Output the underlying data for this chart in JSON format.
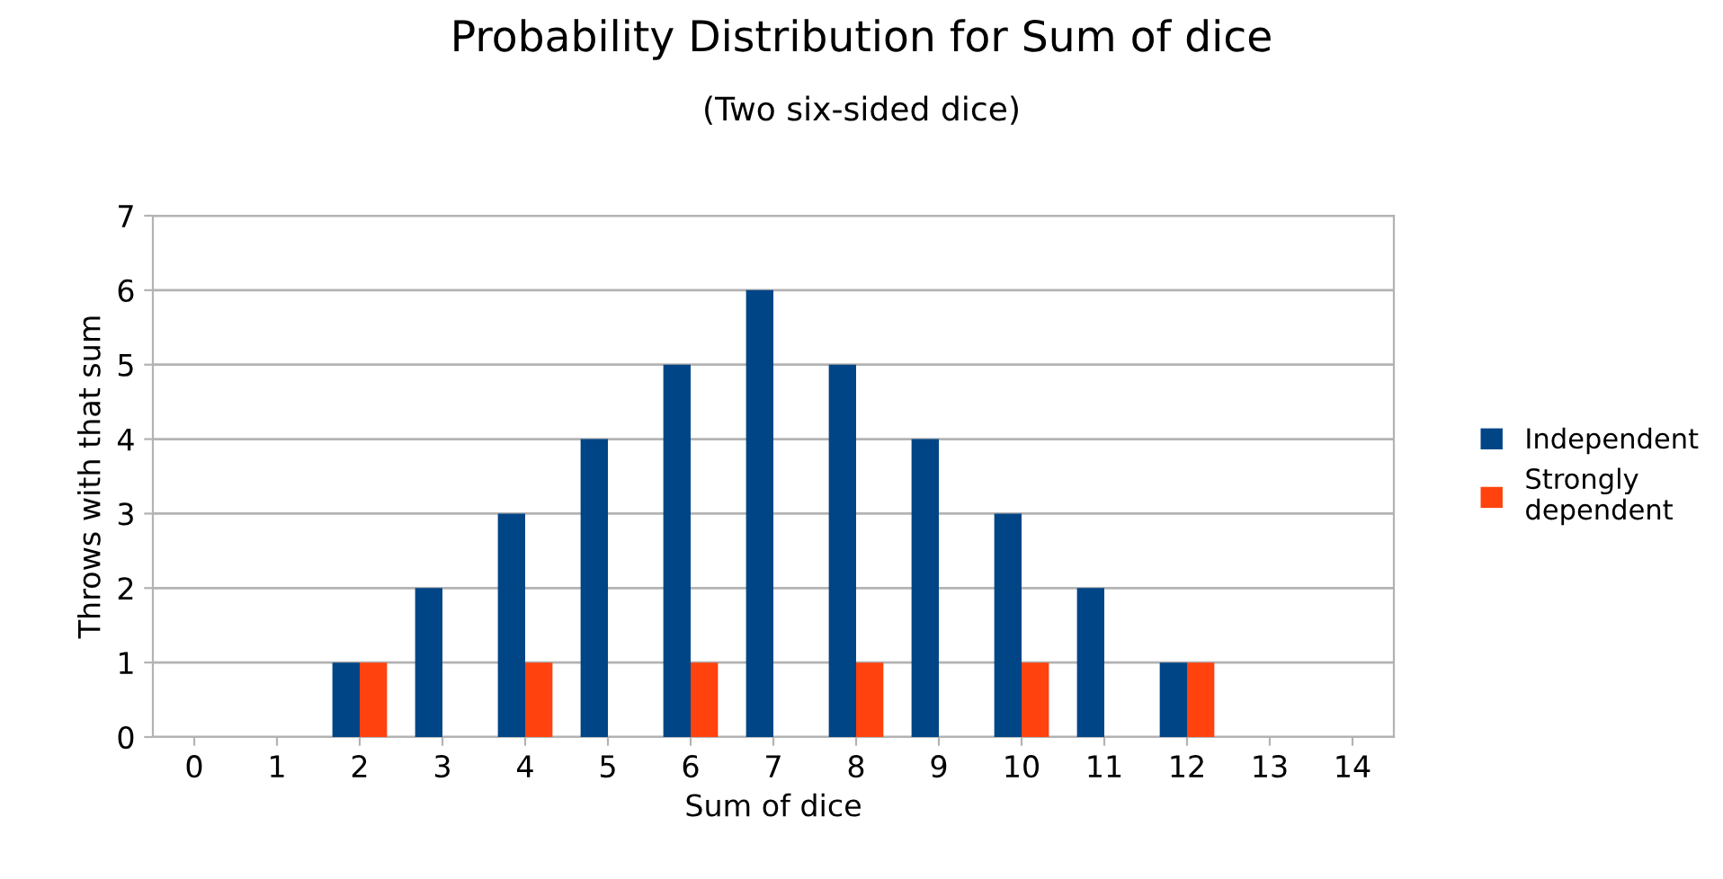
{
  "chart_data": {
    "type": "bar",
    "title": "Probability Distribution for Sum of dice",
    "subtitle": "(Two six-sided dice)",
    "xlabel": "Sum of dice",
    "ylabel": "Throws with that sum",
    "categories": [
      "0",
      "1",
      "2",
      "3",
      "4",
      "5",
      "6",
      "7",
      "8",
      "9",
      "10",
      "11",
      "12",
      "13",
      "14"
    ],
    "series": [
      {
        "name": "Independent",
        "color": "#004586",
        "values": [
          0,
          0,
          1,
          2,
          3,
          4,
          5,
          6,
          5,
          4,
          3,
          2,
          1,
          0,
          0
        ]
      },
      {
        "name": "Strongly dependent",
        "color": "#ff420e",
        "values": [
          0,
          0,
          1,
          0,
          1,
          0,
          1,
          0,
          1,
          0,
          1,
          0,
          1,
          0,
          0
        ]
      }
    ],
    "ylim": [
      0,
      7
    ],
    "yticks": [
      0,
      1,
      2,
      3,
      4,
      5,
      6,
      7
    ],
    "grid": "y",
    "legend": "right"
  }
}
